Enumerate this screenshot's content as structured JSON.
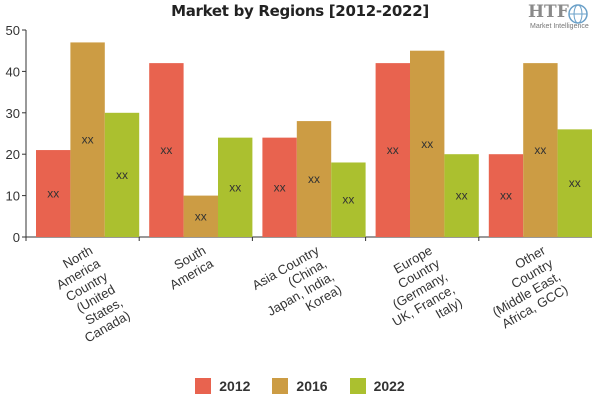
{
  "chart_data": {
    "type": "bar",
    "title": "Market by Regions [2012-2022]",
    "categories": [
      [
        "North",
        "America",
        "Country",
        "(United",
        "States,",
        "Canada)"
      ],
      [
        "South",
        "America"
      ],
      [
        "Asia Country",
        "(China,",
        "Japan, India,",
        "Korea)"
      ],
      [
        "Europe",
        "Country",
        "(Germany,",
        "UK, France,",
        "Italy)"
      ],
      [
        "Other",
        "Country",
        "(Middle East,",
        "Africa, GCC)"
      ]
    ],
    "series": [
      {
        "name": "2012",
        "color": "#e8634f",
        "values": [
          21,
          42,
          24,
          42,
          20
        ]
      },
      {
        "name": "2016",
        "color": "#cc9c44",
        "values": [
          47,
          10,
          28,
          45,
          42
        ]
      },
      {
        "name": "2022",
        "color": "#abc02f",
        "values": [
          30,
          24,
          18,
          20,
          26
        ]
      }
    ],
    "data_label": "xx",
    "y_ticks": [
      0,
      10,
      20,
      30,
      40,
      50
    ],
    "ylim": [
      0,
      50
    ],
    "xlabel": "",
    "ylabel": "",
    "legend_position": "bottom",
    "grid": false
  },
  "logo": {
    "text": "HTF",
    "subtext": "Market Intelligence"
  }
}
